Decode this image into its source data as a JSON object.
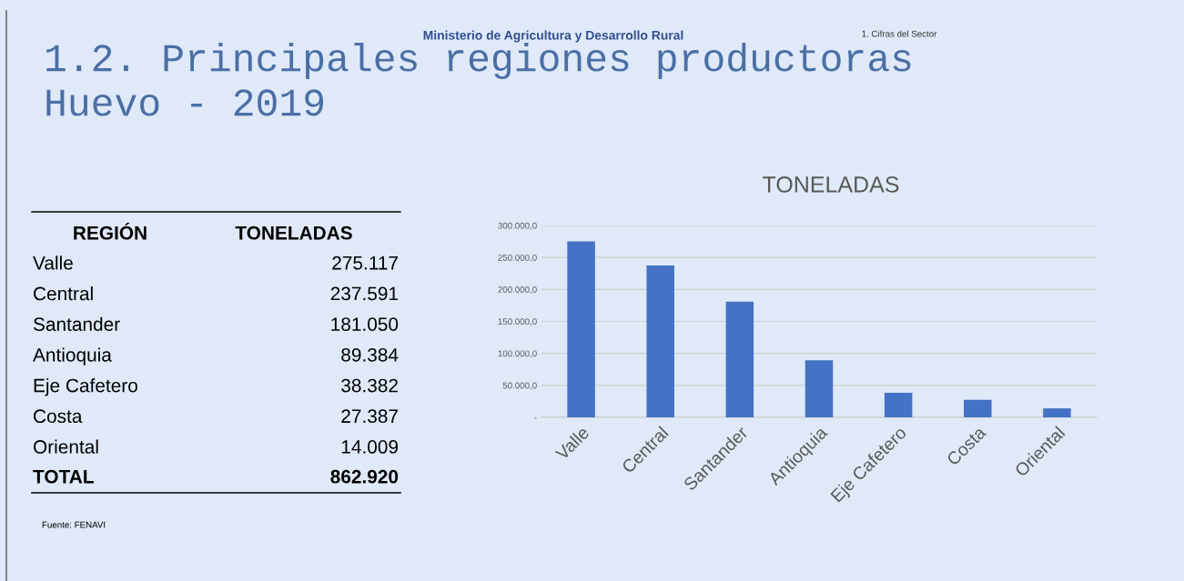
{
  "chart_data": {
    "type": "bar",
    "title": "1.2. Principales regiones productoras",
    "subtitle": "Huevo - 2019",
    "categories": [
      "Valle",
      "Central",
      "Santander",
      "Antioquia",
      "Eje Cafetero",
      "Costa",
      "Oriental"
    ],
    "values": [
      275117,
      237591,
      181050,
      89384,
      38382,
      27387,
      14009
    ],
    "color": "#4472c4",
    "ylim": [
      0,
      300000
    ],
    "yticks": [
      {
        "value": 0,
        "label": "-"
      },
      {
        "value": 50000,
        "label": "50.000,0"
      },
      {
        "value": 100000,
        "label": "100.000,0"
      },
      {
        "value": 150000,
        "label": "150.000,0"
      },
      {
        "value": 200000,
        "label": "200.000,0"
      },
      {
        "value": 250000,
        "label": "250.000,0"
      },
      {
        "value": 300000,
        "label": "300.000,0"
      }
    ],
    "grid": "y",
    "annotations": [
      "TONELADAS",
      "Ministerio de Agricultura y Desarrollo Rural",
      "1. Cifras del Sector",
      "REGIÓN",
      "TONELADAS",
      "TOTAL",
      "862.920",
      "Fuente: FENAVI",
      "275.117",
      "237.591",
      "181.050",
      "89.384",
      "38.382",
      "27.387",
      "14.009"
    ]
  }
}
